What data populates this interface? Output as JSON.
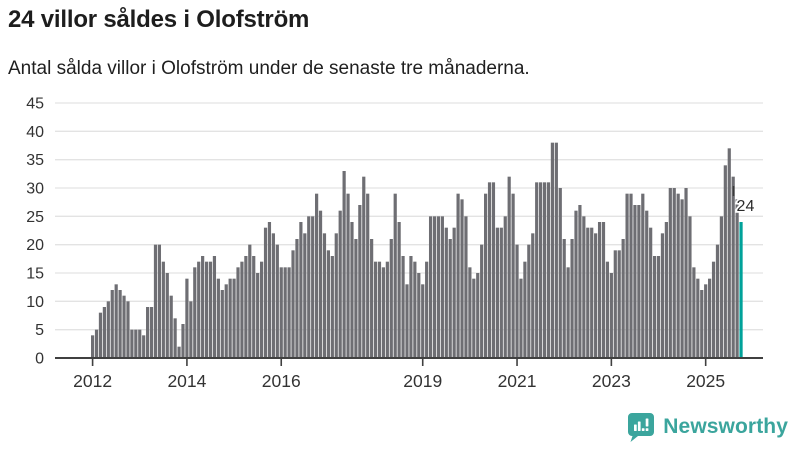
{
  "header": {
    "title": "24 villor såldes i Olofström",
    "subtitle": "Antal sålda villor i Olofström under de senaste tre månaderna."
  },
  "chart_data": {
    "type": "bar",
    "title": "24 villor såldes i Olofström",
    "subtitle": "Antal sålda villor i Olofström under de senaste tre månaderna.",
    "unit": "sålda villor (rullande 3 månader)",
    "start_year": 2012,
    "start_month": 1,
    "frequency": "monthly",
    "values": [
      4,
      5,
      8,
      9,
      10,
      12,
      13,
      12,
      11,
      10,
      5,
      5,
      5,
      4,
      9,
      9,
      20,
      20,
      17,
      15,
      11,
      7,
      2,
      6,
      14,
      10,
      16,
      17,
      18,
      17,
      17,
      18,
      14,
      12,
      13,
      14,
      14,
      16,
      17,
      18,
      20,
      18,
      15,
      17,
      23,
      24,
      22,
      20,
      16,
      16,
      16,
      19,
      21,
      24,
      22,
      25,
      25,
      29,
      26,
      22,
      19,
      18,
      22,
      26,
      33,
      29,
      24,
      21,
      27,
      32,
      29,
      21,
      17,
      17,
      16,
      17,
      21,
      29,
      24,
      18,
      13,
      18,
      17,
      15,
      13,
      17,
      25,
      25,
      25,
      25,
      23,
      21,
      23,
      29,
      28,
      25,
      16,
      14,
      15,
      20,
      29,
      31,
      31,
      23,
      23,
      25,
      32,
      29,
      20,
      14,
      17,
      20,
      22,
      31,
      31,
      31,
      31,
      38,
      38,
      30,
      21,
      16,
      21,
      26,
      27,
      25,
      23,
      23,
      22,
      24,
      24,
      17,
      15,
      19,
      19,
      21,
      29,
      29,
      27,
      27,
      29,
      26,
      23,
      18,
      18,
      22,
      24,
      30,
      30,
      29,
      28,
      30,
      25,
      16,
      14,
      12,
      13,
      14,
      17,
      20,
      25,
      34,
      37,
      32,
      28,
      24
    ],
    "highlight_last": true,
    "highlight_label": "24",
    "ylim": [
      0,
      45
    ],
    "yticks": [
      0,
      5,
      10,
      15,
      20,
      25,
      30,
      35,
      40,
      45
    ],
    "xticks": [
      {
        "label": "2012",
        "month_index": 0
      },
      {
        "label": "2014",
        "month_index": 24
      },
      {
        "label": "2016",
        "month_index": 48
      },
      {
        "label": "2019",
        "month_index": 84
      },
      {
        "label": "2021",
        "month_index": 108
      },
      {
        "label": "2023",
        "month_index": 132
      },
      {
        "label": "2025",
        "month_index": 156
      }
    ],
    "grid": true,
    "legend": false,
    "colors": {
      "bar": "#6e6e73",
      "highlight": "#00a29a",
      "grid": "#e3e3e3",
      "axis": "#404040",
      "tick_text": "#333333",
      "annotation_text": "#2b2b2b"
    }
  },
  "footer": {
    "brand": "Newsworthy",
    "brand_color": "#3ba59d"
  }
}
